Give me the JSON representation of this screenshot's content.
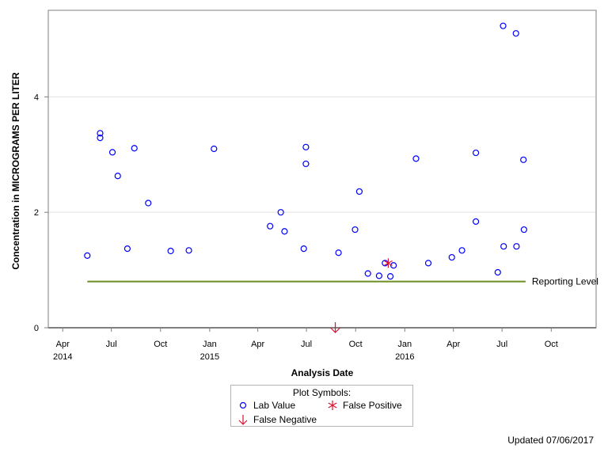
{
  "chart_data": {
    "type": "scatter",
    "xlabel": "Analysis Date",
    "ylabel": "Concentration in MICROGRAMS PER LITER",
    "ylim": [
      0,
      5.5
    ],
    "y_ticks": [
      0,
      2,
      4
    ],
    "xlim": [
      "2014-03-05",
      "2016-12-24"
    ],
    "x_ticks": [
      {
        "date": "2014-04-01",
        "label": "Apr",
        "year": "2014"
      },
      {
        "date": "2014-07-01",
        "label": "Jul",
        "year": ""
      },
      {
        "date": "2014-10-01",
        "label": "Oct",
        "year": ""
      },
      {
        "date": "2015-01-01",
        "label": "Jan",
        "year": "2015"
      },
      {
        "date": "2015-04-01",
        "label": "Apr",
        "year": ""
      },
      {
        "date": "2015-07-01",
        "label": "Jul",
        "year": ""
      },
      {
        "date": "2015-10-01",
        "label": "Oct",
        "year": ""
      },
      {
        "date": "2016-01-01",
        "label": "Jan",
        "year": "2016"
      },
      {
        "date": "2016-04-01",
        "label": "Apr",
        "year": ""
      },
      {
        "date": "2016-07-01",
        "label": "Jul",
        "year": ""
      },
      {
        "date": "2016-10-01",
        "label": "Oct",
        "year": ""
      }
    ],
    "grid": "horizontal",
    "reporting_level": {
      "value": 0.8,
      "label": "Reporting Level",
      "x_start": "2014-05-17",
      "x_end": "2016-08-14",
      "color": "#6b8e23"
    },
    "series": [
      {
        "name": "Lab Value",
        "marker": "circle",
        "color": "#0000ff",
        "points": [
          {
            "x": "2014-05-17",
            "y": 1.25
          },
          {
            "x": "2014-06-10",
            "y": 3.37
          },
          {
            "x": "2014-06-10",
            "y": 3.29
          },
          {
            "x": "2014-07-03",
            "y": 3.04
          },
          {
            "x": "2014-07-13",
            "y": 2.63
          },
          {
            "x": "2014-07-31",
            "y": 1.37
          },
          {
            "x": "2014-08-13",
            "y": 3.11
          },
          {
            "x": "2014-09-08",
            "y": 2.16
          },
          {
            "x": "2014-10-20",
            "y": 1.33
          },
          {
            "x": "2014-11-23",
            "y": 1.34
          },
          {
            "x": "2015-01-09",
            "y": 3.1
          },
          {
            "x": "2015-04-24",
            "y": 1.76
          },
          {
            "x": "2015-05-14",
            "y": 2.0
          },
          {
            "x": "2015-05-21",
            "y": 1.67
          },
          {
            "x": "2015-06-26",
            "y": 1.37
          },
          {
            "x": "2015-06-30",
            "y": 3.13
          },
          {
            "x": "2015-06-30",
            "y": 2.84
          },
          {
            "x": "2015-08-30",
            "y": 1.3
          },
          {
            "x": "2015-09-30",
            "y": 1.7
          },
          {
            "x": "2015-10-08",
            "y": 2.36
          },
          {
            "x": "2015-10-24",
            "y": 0.94
          },
          {
            "x": "2015-11-14",
            "y": 0.9
          },
          {
            "x": "2015-11-25",
            "y": 1.12
          },
          {
            "x": "2015-12-05",
            "y": 0.89
          },
          {
            "x": "2015-12-11",
            "y": 1.08
          },
          {
            "x": "2016-01-22",
            "y": 2.93
          },
          {
            "x": "2016-02-14",
            "y": 1.12
          },
          {
            "x": "2016-03-29",
            "y": 1.22
          },
          {
            "x": "2016-04-17",
            "y": 1.34
          },
          {
            "x": "2016-05-13",
            "y": 3.03
          },
          {
            "x": "2016-05-13",
            "y": 1.84
          },
          {
            "x": "2016-06-23",
            "y": 0.96
          },
          {
            "x": "2016-07-03",
            "y": 5.23
          },
          {
            "x": "2016-07-04",
            "y": 1.41
          },
          {
            "x": "2016-07-27",
            "y": 5.1
          },
          {
            "x": "2016-07-28",
            "y": 1.41
          },
          {
            "x": "2016-08-10",
            "y": 2.91
          },
          {
            "x": "2016-08-11",
            "y": 1.7
          }
        ]
      },
      {
        "name": "False Positive",
        "marker": "asterisk",
        "color": "#e0102f",
        "points": [
          {
            "x": "2015-12-01",
            "y": 1.12
          }
        ]
      },
      {
        "name": "False Negative",
        "marker": "down-arrow",
        "color": "#e0102f",
        "points": [
          {
            "x": "2015-08-24",
            "y": 0
          }
        ]
      }
    ],
    "legend": {
      "title": "Plot Symbols:",
      "placement": "bottom",
      "items": [
        "Lab Value",
        "False Positive",
        "False Negative"
      ]
    }
  },
  "footer": {
    "updated": "Updated 07/06/2017"
  }
}
